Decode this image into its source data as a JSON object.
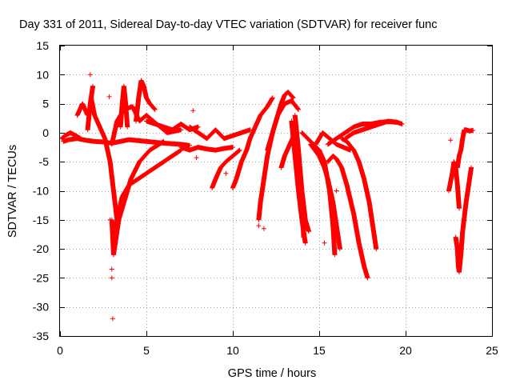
{
  "chart_data": {
    "type": "scatter",
    "title": "Day 331 of 2011, Sidereal Day-to-day VTEC variation (SDTVAR) for receiver func",
    "xlabel": "GPS time / hours",
    "ylabel": "SDTVAR / TECUs",
    "xlim": [
      0,
      25
    ],
    "ylim": [
      -35,
      15
    ],
    "xticks": [
      0,
      5,
      10,
      15,
      20,
      25
    ],
    "yticks": [
      -35,
      -30,
      -25,
      -20,
      -15,
      -10,
      -5,
      0,
      5,
      10,
      15
    ],
    "marker": "+",
    "grid": true,
    "series": [
      {
        "name": "SDTVAR",
        "color": "#ff0000",
        "tracks": [
          {
            "x": [
              0.2,
              0.5,
              1.0,
              1.5,
              2.0,
              2.5,
              3.0,
              3.5,
              4.0,
              5.0,
              6.0,
              7.0,
              7.5
            ],
            "y": [
              -1.5,
              -1.2,
              -1.0,
              -1.3,
              -1.5,
              -1.6,
              -1.8,
              -1.5,
              -1.2,
              -1.5,
              -1.8,
              -2.0,
              -2.2
            ]
          },
          {
            "x": [
              0.1,
              0.3,
              0.6,
              0.9,
              1.2
            ],
            "y": [
              -1.0,
              -0.5,
              0.0,
              -0.5,
              -1.0
            ]
          },
          {
            "x": [
              1.0,
              1.15,
              1.3,
              1.45,
              1.6
            ],
            "y": [
              3.0,
              4.0,
              5.0,
              4.0,
              3.0
            ]
          },
          {
            "x": [
              1.6,
              1.75,
              1.9
            ],
            "y": [
              0.5,
              5.0,
              8.0
            ]
          },
          {
            "x": [
              1.75
            ],
            "y": [
              10.0
            ]
          },
          {
            "x": [
              2.85
            ],
            "y": [
              6.2
            ]
          },
          {
            "x": [
              1.8,
              2.0,
              2.3,
              2.6,
              2.9,
              3.1,
              3.3
            ],
            "y": [
              6.0,
              3.0,
              1.0,
              -1.0,
              -5.0,
              -10.0,
              -15.0
            ]
          },
          {
            "x": [
              3.0,
              3.05,
              3.1,
              3.2,
              3.4,
              3.7,
              4.1,
              4.6,
              5.2,
              6.0
            ],
            "y": [
              -15.0,
              -18.0,
              -21.0,
              -19.0,
              -15.0,
              -12.0,
              -8.0,
              -5.0,
              -3.0,
              -1.5
            ]
          },
          {
            "x": [
              3.1,
              3.3,
              3.6,
              4.0,
              4.5,
              5.0,
              5.5,
              6.0,
              6.5,
              7.0
            ],
            "y": [
              -20.0,
              -15.0,
              -11.0,
              -9.0,
              -8.0,
              -7.0,
              -6.0,
              -5.0,
              -4.0,
              -3.0
            ]
          },
          {
            "x": [
              3.0,
              3.3,
              3.7,
              4.2,
              4.6,
              5.0,
              5.4,
              5.8,
              6.2,
              7.0
            ],
            "y": [
              -2.0,
              2.0,
              4.0,
              4.5,
              2.0,
              3.0,
              2.0,
              1.0,
              0.0,
              0.5
            ]
          },
          {
            "x": [
              3.5,
              3.6,
              3.7,
              3.8,
              3.9
            ],
            "y": [
              1.0,
              5.0,
              8.0,
              5.0,
              1.0
            ]
          },
          {
            "x": [
              4.4,
              4.55,
              4.7,
              4.85,
              5.0,
              5.2,
              5.5
            ],
            "y": [
              2.0,
              6.0,
              9.0,
              8.0,
              6.0,
              5.0,
              4.0
            ]
          },
          {
            "x": [
              5.0,
              5.5,
              6.0,
              6.5,
              7.0,
              7.5,
              8.0
            ],
            "y": [
              2.0,
              1.5,
              1.0,
              0.5,
              1.5,
              0.5,
              1.0
            ]
          },
          {
            "x": [
              3.0
            ],
            "y": [
              -23.5
            ]
          },
          {
            "x": [
              3.0
            ],
            "y": [
              -25.0
            ]
          },
          {
            "x": [
              3.05
            ],
            "y": [
              -32.0
            ]
          },
          {
            "x": [
              2.9
            ],
            "y": [
              -15.0
            ]
          },
          {
            "x": [
              7.7
            ],
            "y": [
              3.8
            ]
          },
          {
            "x": [
              7.9
            ],
            "y": [
              -4.3
            ]
          },
          {
            "x": [
              7.0,
              7.5,
              8.0,
              8.5,
              9.0,
              9.5,
              10.0
            ],
            "y": [
              -2.5,
              -3.0,
              -2.5,
              -2.8,
              -3.0,
              -2.7,
              -2.5
            ]
          },
          {
            "x": [
              7.5,
              8.0,
              8.5,
              9.0,
              9.5,
              10.0,
              10.5,
              11.0
            ],
            "y": [
              1.0,
              0.0,
              -1.0,
              0.5,
              -1.0,
              -0.5,
              0.0,
              0.5
            ]
          },
          {
            "x": [
              8.8,
              9.0,
              9.3,
              9.6,
              10.0,
              10.4
            ],
            "y": [
              -9.5,
              -8.0,
              -6.0,
              -5.0,
              -4.0,
              -3.0
            ]
          },
          {
            "x": [
              9.3
            ],
            "y": [
              -6.0
            ]
          },
          {
            "x": [
              9.6
            ],
            "y": [
              -7.0
            ]
          },
          {
            "x": [
              10.0,
              10.2,
              10.5,
              10.8,
              11.0,
              11.3,
              11.6,
              12.0,
              12.3
            ],
            "y": [
              -9.5,
              -8.0,
              -5.0,
              -3.0,
              -1.0,
              1.0,
              3.0,
              4.5,
              6.0
            ]
          },
          {
            "x": [
              11.5,
              11.6,
              11.8,
              12.0,
              12.3,
              12.6,
              13.0,
              13.4,
              13.8
            ],
            "y": [
              -15.0,
              -12.0,
              -8.0,
              -4.0,
              0.0,
              3.0,
              5.0,
              5.5,
              4.0
            ]
          },
          {
            "x": [
              11.5
            ],
            "y": [
              -16.0
            ]
          },
          {
            "x": [
              11.8
            ],
            "y": [
              -16.5
            ]
          },
          {
            "x": [
              12.0,
              12.2,
              12.4,
              12.6,
              12.8,
              13.0,
              13.2,
              13.5
            ],
            "y": [
              -3.0,
              -1.0,
              1.0,
              3.0,
              5.0,
              6.5,
              7.0,
              6.0
            ]
          },
          {
            "x": [
              12.8,
              13.0,
              13.3,
              13.6,
              13.8,
              14.0,
              14.1
            ],
            "y": [
              -6.0,
              -4.0,
              -2.0,
              0.0,
              -5.0,
              -12.0,
              -18.0
            ]
          },
          {
            "x": [
              13.4,
              13.6,
              13.8,
              14.0,
              14.2
            ],
            "y": [
              2.0,
              -4.0,
              -10.0,
              -15.0,
              -19.0
            ]
          },
          {
            "x": [
              13.6,
              13.8,
              14.0,
              14.2,
              14.4
            ],
            "y": [
              3.0,
              -3.0,
              -10.0,
              -15.0,
              -17.0
            ]
          },
          {
            "x": [
              14.0,
              14.5,
              15.0,
              15.3,
              15.6,
              15.8,
              15.9
            ],
            "y": [
              0.0,
              -1.5,
              -3.0,
              -5.0,
              -10.0,
              -16.0,
              -21.0
            ]
          },
          {
            "x": [
              14.5,
              15.0,
              15.3,
              15.5,
              15.8,
              16.0,
              16.2
            ],
            "y": [
              -2.0,
              -4.0,
              -6.0,
              -8.0,
              -12.0,
              -16.0,
              -20.0
            ]
          },
          {
            "x": [
              15.5,
              15.8,
              16.0,
              16.3,
              16.6,
              17.0,
              17.3,
              17.6,
              17.8
            ],
            "y": [
              -5.0,
              -4.0,
              -4.5,
              -6.0,
              -9.0,
              -14.0,
              -19.0,
              -23.0,
              -25.0
            ]
          },
          {
            "x": [
              16.3,
              16.6,
              17.0,
              17.3,
              17.6,
              17.9,
              18.1,
              18.3
            ],
            "y": [
              -1.0,
              -1.5,
              -3.0,
              -5.0,
              -8.0,
              -12.0,
              -16.0,
              -20.0
            ]
          },
          {
            "x": [
              15.3
            ],
            "y": [
              -19.0
            ]
          },
          {
            "x": [
              16.0
            ],
            "y": [
              -10.0
            ]
          },
          {
            "x": [
              14.8,
              15.2,
              15.6,
              16.0,
              16.4,
              16.8
            ],
            "y": [
              -2.0,
              0.0,
              -1.0,
              -2.0,
              -2.5,
              -3.0
            ]
          },
          {
            "x": [
              15.5,
              16.0,
              16.5,
              17.0,
              17.5,
              18.0,
              18.5,
              19.0,
              19.5
            ],
            "y": [
              -2.0,
              -1.0,
              0.0,
              1.0,
              1.5,
              1.5,
              1.8,
              1.9,
              1.8
            ]
          },
          {
            "x": [
              16.5,
              17.0,
              17.5,
              18.0,
              18.5,
              19.0,
              19.5,
              19.8
            ],
            "y": [
              -1.0,
              0.0,
              0.5,
              1.0,
              1.5,
              2.0,
              1.8,
              1.5
            ]
          },
          {
            "x": [
              22.5,
              22.7,
              22.8,
              22.9,
              23.0,
              23.1
            ],
            "y": [
              -10.0,
              -7.0,
              -5.0,
              -6.0,
              -9.0,
              -13.0
            ]
          },
          {
            "x": [
              22.9,
              23.0,
              23.05,
              23.1,
              23.2,
              23.3,
              23.5,
              23.7,
              23.8
            ],
            "y": [
              -18.0,
              -20.0,
              -23.0,
              -24.0,
              -21.0,
              -17.0,
              -12.0,
              -8.0,
              -6.0
            ]
          },
          {
            "x": [
              22.6
            ],
            "y": [
              -1.3
            ]
          },
          {
            "x": [
              22.95
            ],
            "y": [
              -19.0
            ]
          },
          {
            "x": [
              23.0,
              23.1,
              23.2,
              23.3,
              23.4,
              23.5,
              23.7,
              23.9
            ],
            "y": [
              -6.0,
              -4.0,
              -3.0,
              -1.0,
              0.5,
              0.5,
              0.3,
              0.4
            ]
          }
        ]
      }
    ]
  }
}
